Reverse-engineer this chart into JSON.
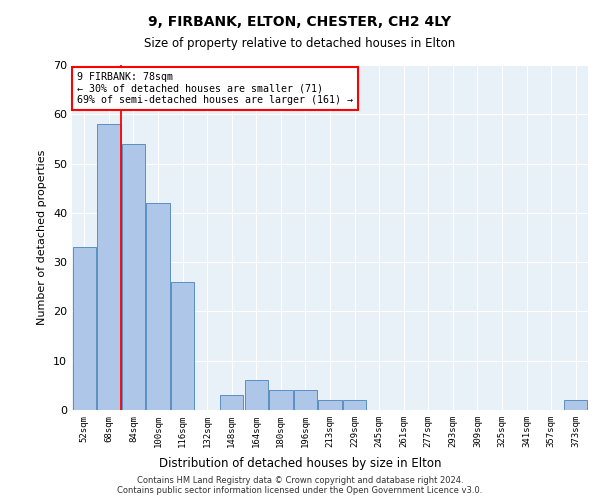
{
  "title": "9, FIRBANK, ELTON, CHESTER, CH2 4LY",
  "subtitle": "Size of property relative to detached houses in Elton",
  "xlabel": "Distribution of detached houses by size in Elton",
  "ylabel": "Number of detached properties",
  "bar_labels": [
    "52sqm",
    "68sqm",
    "84sqm",
    "100sqm",
    "116sqm",
    "132sqm",
    "148sqm",
    "164sqm",
    "180sqm",
    "196sqm",
    "213sqm",
    "229sqm",
    "245sqm",
    "261sqm",
    "277sqm",
    "293sqm",
    "309sqm",
    "325sqm",
    "341sqm",
    "357sqm",
    "373sqm"
  ],
  "bar_values": [
    33,
    58,
    54,
    42,
    26,
    0,
    3,
    6,
    4,
    4,
    2,
    2,
    0,
    0,
    0,
    0,
    0,
    0,
    0,
    0,
    2
  ],
  "bar_color": "#aec6e8",
  "bar_edge_color": "#5a8fc0",
  "property_line_x": 1.5,
  "annotation_line1": "9 FIRBANK: 78sqm",
  "annotation_line2": "← 30% of detached houses are smaller (71)",
  "annotation_line3": "69% of semi-detached houses are larger (161) →",
  "ylim": [
    0,
    70
  ],
  "yticks": [
    0,
    10,
    20,
    30,
    40,
    50,
    60,
    70
  ],
  "background_color": "#e8f0f8",
  "grid_color": "white",
  "footer": "Contains HM Land Registry data © Crown copyright and database right 2024.\nContains public sector information licensed under the Open Government Licence v3.0."
}
